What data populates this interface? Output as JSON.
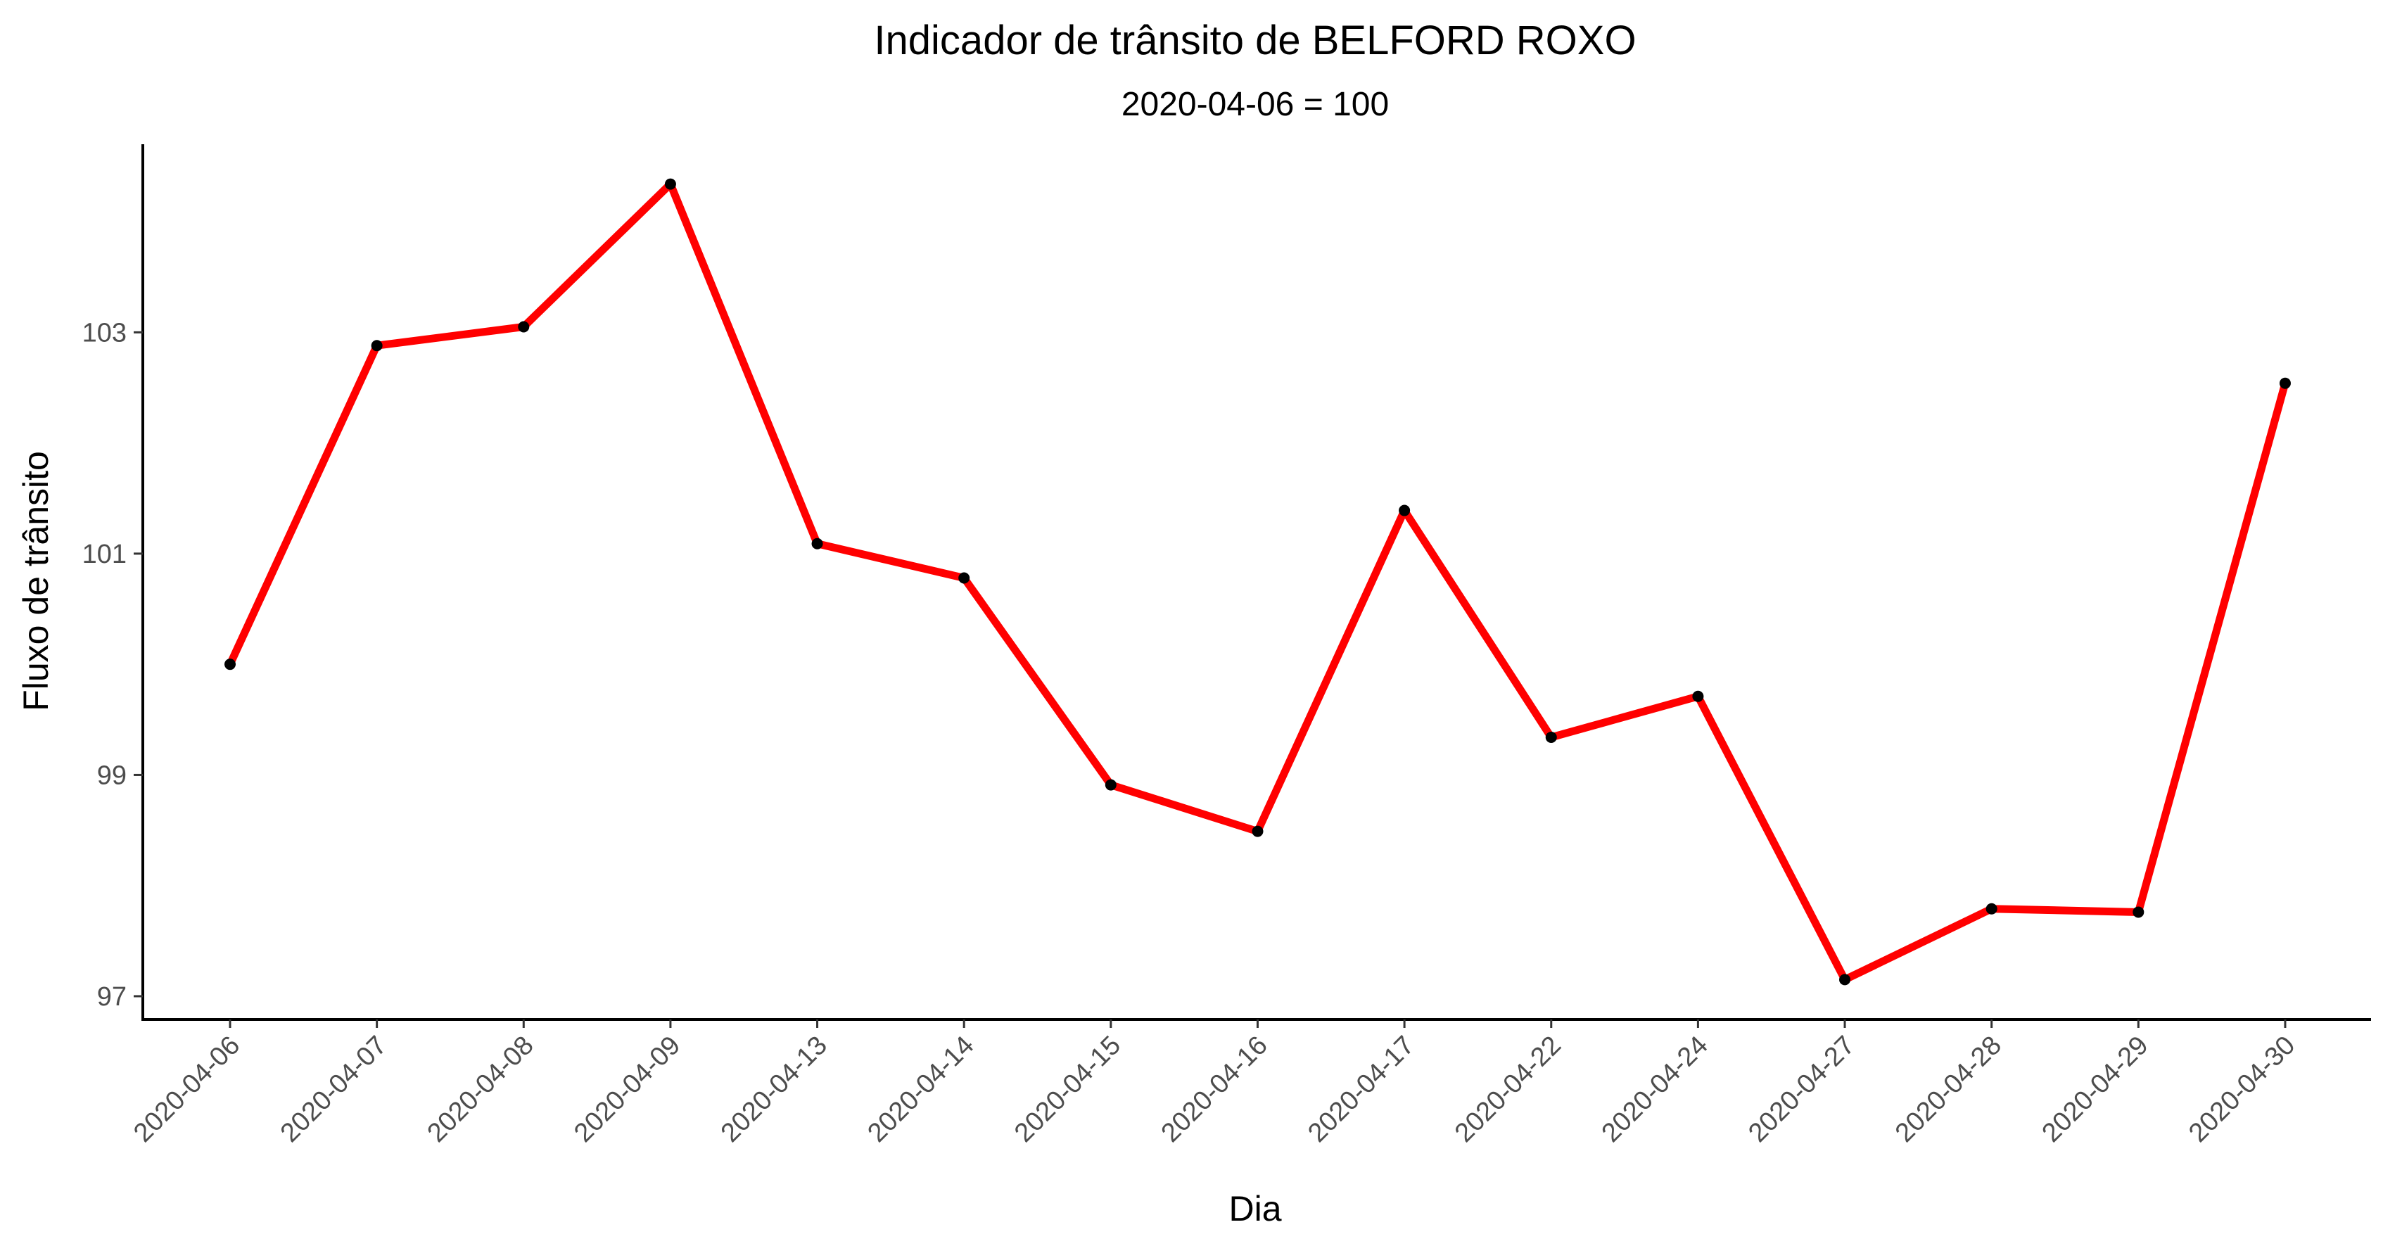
{
  "chart_data": {
    "type": "line",
    "title": "Indicador de trânsito de BELFORD ROXO",
    "subtitle": "2020-04-06 = 100",
    "xlabel": "Dia",
    "ylabel": "Fluxo de trânsito",
    "categories": [
      "2020-04-06",
      "2020-04-07",
      "2020-04-08",
      "2020-04-09",
      "2020-04-13",
      "2020-04-14",
      "2020-04-15",
      "2020-04-16",
      "2020-04-17",
      "2020-04-22",
      "2020-04-24",
      "2020-04-27",
      "2020-04-28",
      "2020-04-29",
      "2020-04-30"
    ],
    "series": [
      {
        "values": [
          100.0,
          102.88,
          103.05,
          104.34,
          101.09,
          100.78,
          98.91,
          98.49,
          101.39,
          99.34,
          99.71,
          97.15,
          97.79,
          97.76,
          102.54
        ]
      }
    ],
    "yticks": [
      97,
      99,
      101,
      103
    ],
    "ylim": [
      96.79,
      104.7
    ],
    "grid": false,
    "legend": "none",
    "line_color": "#ff0000",
    "point_color": "#000000"
  }
}
